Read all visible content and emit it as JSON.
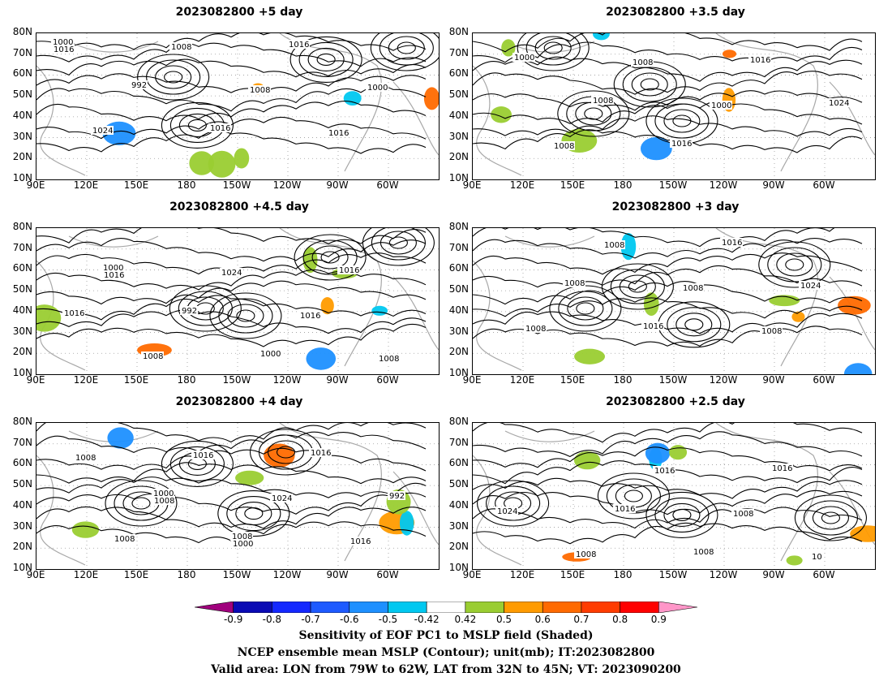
{
  "panels": [
    {
      "title": "2023082800  +5 day",
      "col": 0,
      "row": 0,
      "labels": [
        "1000",
        "992",
        "1016",
        "1016",
        "1000",
        "1024",
        "1008",
        "1008",
        "1016",
        "1016"
      ],
      "highs": [
        [
          0.4,
          0.63
        ],
        [
          0.34,
          0.3
        ]
      ],
      "lows": [
        [
          0.72,
          0.18
        ],
        [
          0.92,
          0.1
        ]
      ]
    },
    {
      "title": "2023082800  +3.5 day",
      "col": 1,
      "row": 0,
      "labels": [
        "1000",
        "1008",
        "1016",
        "1016",
        "1024",
        "1008",
        "1008",
        "1000"
      ],
      "highs": [
        [
          0.3,
          0.55
        ],
        [
          0.52,
          0.6
        ]
      ],
      "lows": [
        [
          0.44,
          0.35
        ],
        [
          0.2,
          0.1
        ]
      ]
    },
    {
      "title": "2023082800  +4.5 day",
      "col": 0,
      "row": 1,
      "labels": [
        "1000",
        "992",
        "1000",
        "1016",
        "1016",
        "1008",
        "1024",
        "1016",
        "1008",
        "1016"
      ],
      "highs": [
        [
          0.42,
          0.55
        ],
        [
          0.52,
          0.6
        ]
      ],
      "lows": [
        [
          0.73,
          0.2
        ],
        [
          0.9,
          0.1
        ]
      ]
    },
    {
      "title": "2023082800  +3 day",
      "col": 1,
      "row": 1,
      "labels": [
        "1008",
        "1016",
        "1016",
        "1024",
        "1008",
        "1008",
        "1008",
        "1008"
      ],
      "highs": [
        [
          0.28,
          0.55
        ],
        [
          0.55,
          0.66
        ]
      ],
      "lows": [
        [
          0.41,
          0.4
        ],
        [
          0.8,
          0.25
        ]
      ]
    },
    {
      "title": "2023082800  +4 day",
      "col": 0,
      "row": 2,
      "labels": [
        "1000",
        "1008",
        "1016",
        "992",
        "1008",
        "1016",
        "1024",
        "1016",
        "1008",
        "1008",
        "1000"
      ],
      "highs": [
        [
          0.26,
          0.55
        ],
        [
          0.54,
          0.62
        ]
      ],
      "lows": [
        [
          0.62,
          0.2
        ],
        [
          0.4,
          0.28
        ]
      ]
    },
    {
      "title": "2023082800  +2.5 day",
      "col": 1,
      "row": 2,
      "labels": [
        "1016",
        "1008",
        "1016",
        "1024",
        "1008",
        "1016",
        "1008",
        "10"
      ],
      "highs": [
        [
          0.52,
          0.63
        ],
        [
          0.1,
          0.55
        ]
      ],
      "lows": [
        [
          0.4,
          0.5
        ],
        [
          0.89,
          0.65
        ]
      ]
    }
  ],
  "y_axis_labels": [
    "80N",
    "70N",
    "60N",
    "50N",
    "40N",
    "30N",
    "20N",
    "10N"
  ],
  "x_axis_labels": [
    "90E",
    "120E",
    "150E",
    "180",
    "150W",
    "120W",
    "90W",
    "60W"
  ],
  "colorbar": {
    "colors": [
      "#a0007d",
      "#0a0ab4",
      "#1428ff",
      "#1e5aff",
      "#1e90ff",
      "#00c8f0",
      "#ffffff",
      "#9acd32",
      "#ff9b00",
      "#ff6a00",
      "#ff3c00",
      "#ff0000",
      "#ff96c8"
    ],
    "labels": [
      "-0.9",
      "-0.8",
      "-0.7",
      "-0.6",
      "-0.5",
      "-0.42",
      "0.42",
      "0.5",
      "0.6",
      "0.7",
      "0.8",
      "0.9"
    ]
  },
  "caption": [
    "Sensitivity of EOF PC1 to MSLP field (Shaded)",
    "NCEP ensemble mean MSLP (Contour); unit(mb); IT:2023082800",
    "Valid area: LON from 79W to 62W, LAT from 32N to 45N; VT: 2023090200"
  ]
}
